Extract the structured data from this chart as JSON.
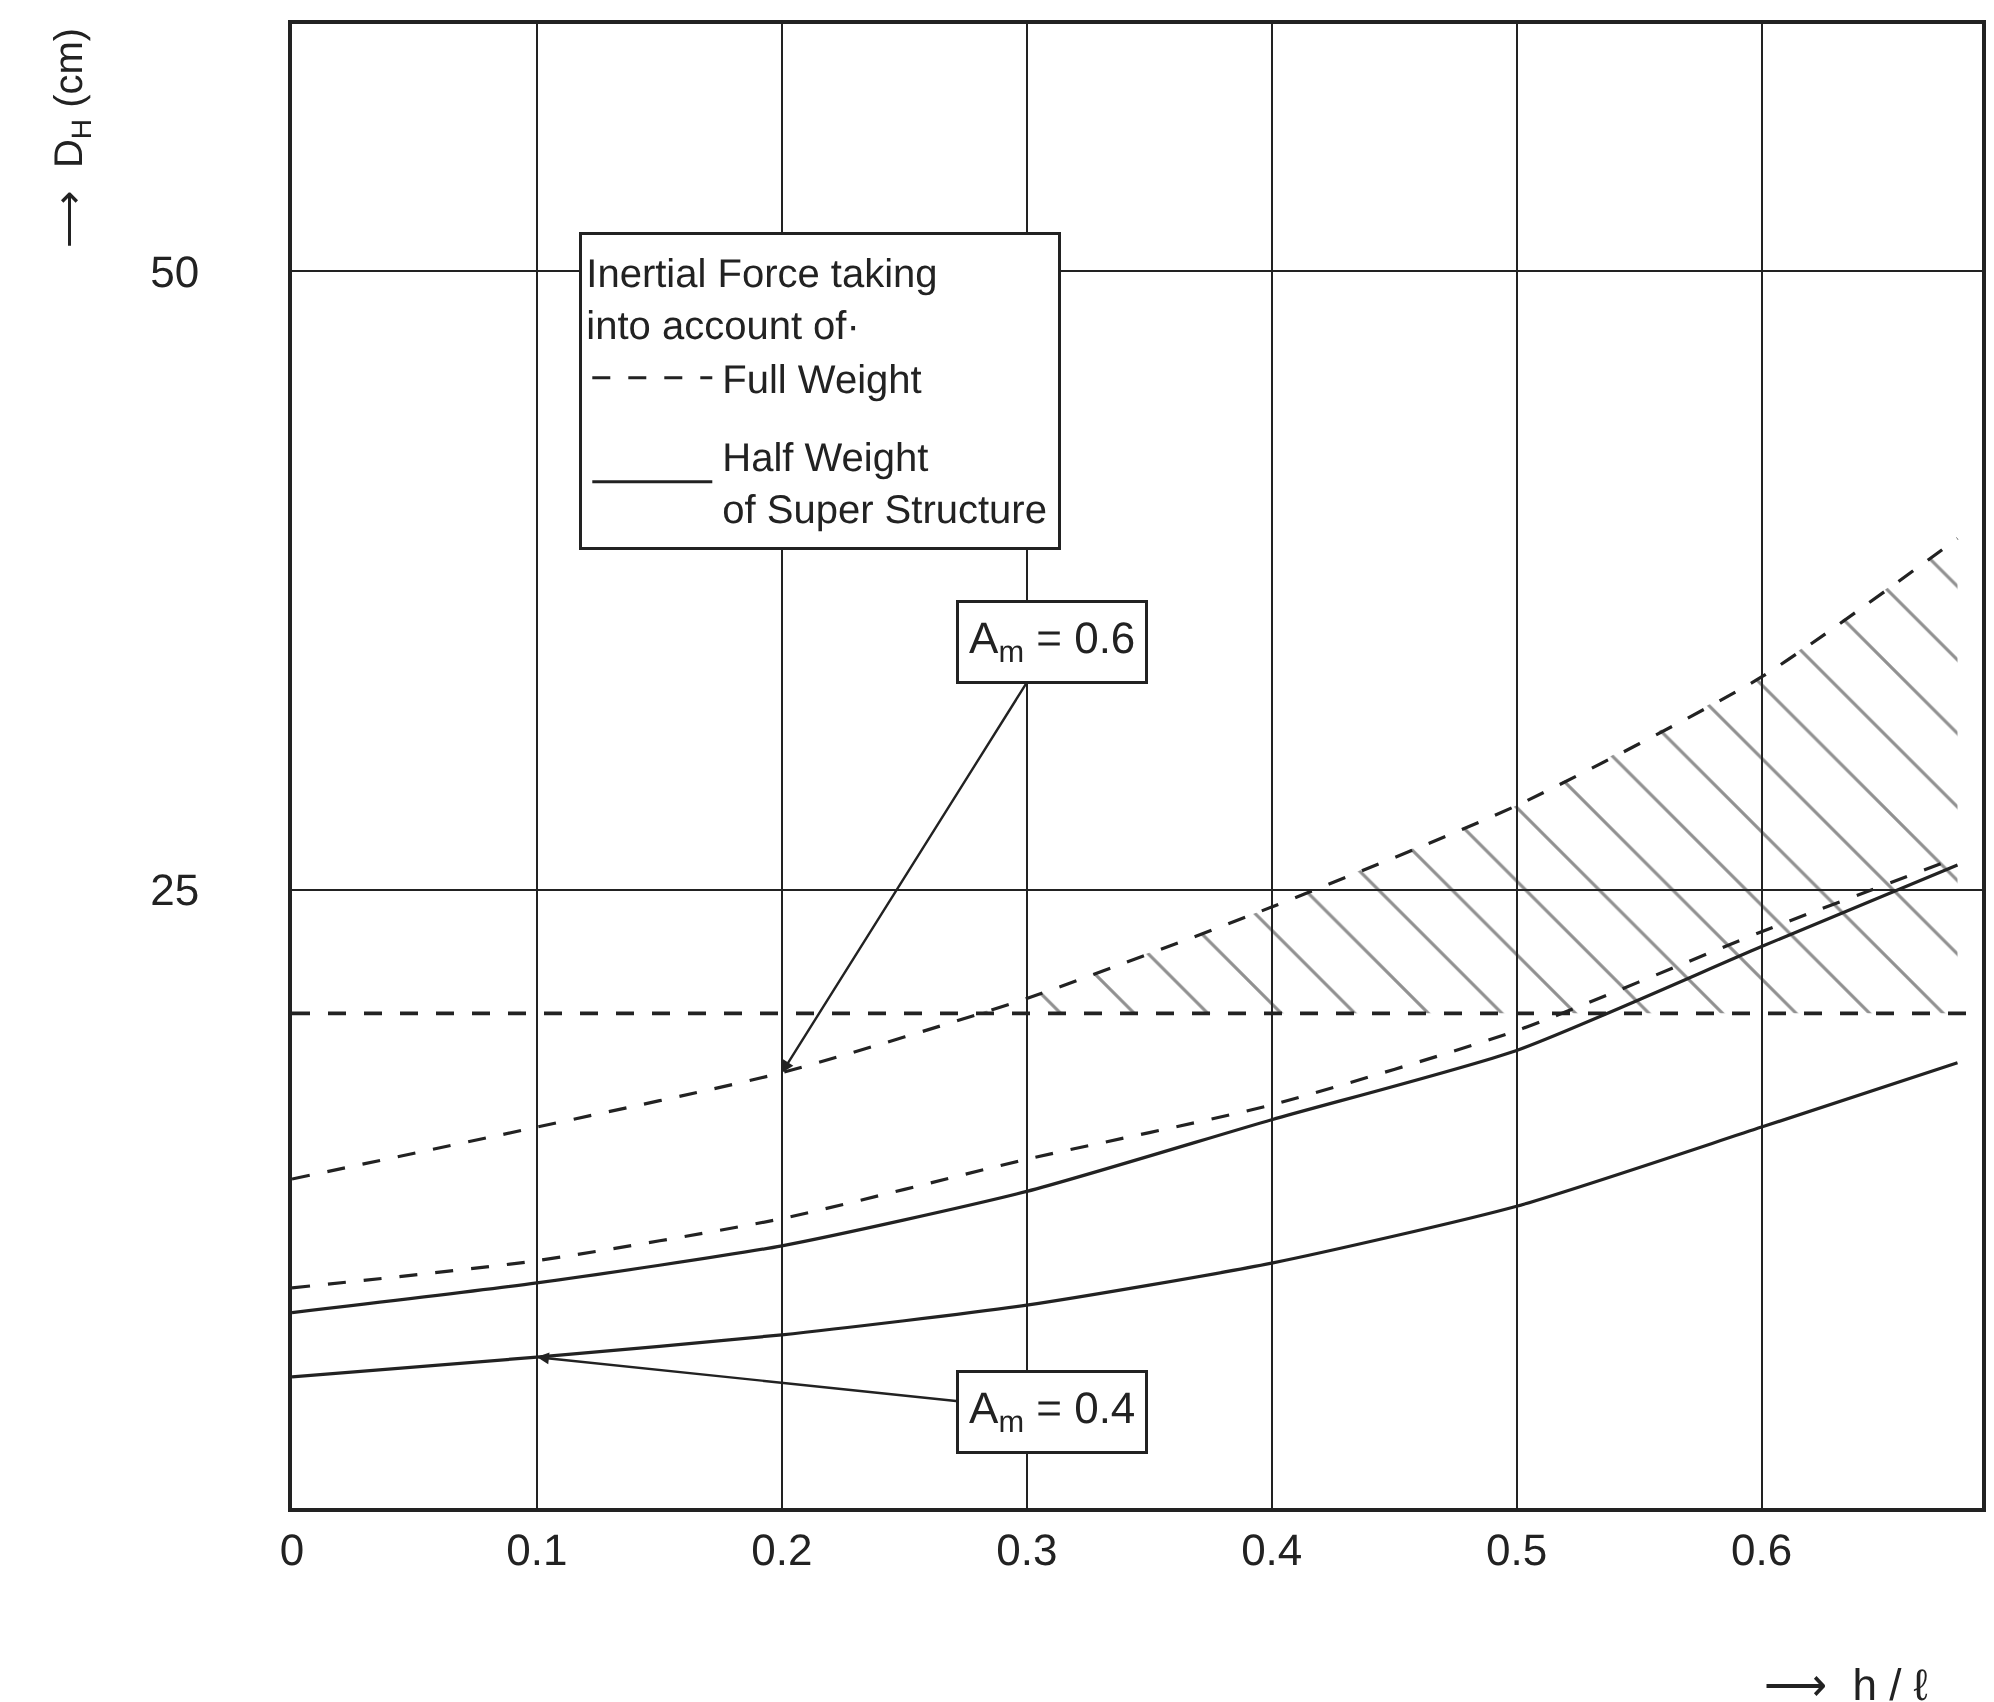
{
  "chart_data": {
    "type": "line",
    "xlabel": "⟶  h / ℓ",
    "ylabel": "⟶  D$_{H}$ (cm)",
    "legend_title": "Inertial Force taking\ninto account of·",
    "xlim": [
      0,
      0.69
    ],
    "ylim": [
      0,
      60
    ],
    "xticks": [
      0,
      0.1,
      0.2,
      0.3,
      0.4,
      0.5,
      0.6
    ],
    "yticks": [
      25,
      50
    ],
    "grid": true,
    "legend": "top left",
    "marker": "none",
    "series": [
      {
        "name": "Full Weight",
        "color": "#222222",
        "line_style": "dashed",
        "x": [
          0,
          0.1,
          0.2,
          0.3,
          0.4,
          0.5,
          0.6,
          0.68
        ],
        "values": [
          13.3,
          15.4,
          17.6,
          20.6,
          24.3,
          28.4,
          33.6,
          39.2
        ]
      },
      {
        "name": "Half Weight\nof Super Structure",
        "color": "#222222",
        "line_style": "solid",
        "x": [
          0,
          0.1,
          0.2,
          0.3,
          0.4,
          0.5,
          0.6,
          0.68
        ],
        "values": [
          7.9,
          9.1,
          10.6,
          12.8,
          15.7,
          18.5,
          22.7,
          26.0
        ]
      },
      {
        "color": "#222222",
        "line_style": "dashed",
        "x": [
          0,
          0.1,
          0.2,
          0.3,
          0.4,
          0.5,
          0.6,
          0.68
        ],
        "values": [
          8.9,
          10.0,
          11.7,
          14.1,
          16.3,
          19.3,
          23.3,
          26.3
        ]
      },
      {
        "color": "#222222",
        "line_style": "solid",
        "x": [
          0,
          0.1,
          0.2,
          0.3,
          0.4,
          0.5,
          0.6,
          0.68
        ],
        "values": [
          5.3,
          6.1,
          7.0,
          8.2,
          9.9,
          12.2,
          15.4,
          18.0
        ]
      },
      {
        "type": "area",
        "color": "#222222",
        "x": [
          0.28,
          0.3,
          0.4,
          0.5,
          0.6,
          0.68
        ],
        "values": [
          20.0,
          20.6,
          24.3,
          28.4,
          33.6,
          39.2
        ]
      }
    ],
    "ref_lines": [
      {
        "axis": "y",
        "value": 20,
        "line_style": "dashed",
        "color": "#222222"
      }
    ],
    "annotations": [
      {
        "text": "A$_{m}$ = 0.6",
        "x": 0.2,
        "y": 17.6
      },
      {
        "text": "A$_{m}$ = 0.4",
        "x": 0.1,
        "y": 6.1
      }
    ]
  }
}
